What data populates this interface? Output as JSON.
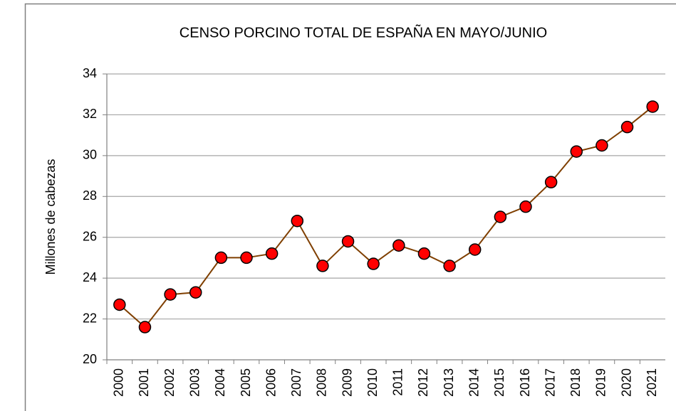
{
  "chart_data": {
    "type": "line",
    "title": "CENSO PORCINO TOTAL DE ESPAÑA EN MAYO/JUNIO",
    "y_label": "Millones de cabezas",
    "categories": [
      "2000",
      "2001",
      "2002",
      "2003",
      "2004",
      "2005",
      "2006",
      "2007",
      "2008",
      "2009",
      "2010",
      "2011",
      "2012",
      "2013",
      "2014",
      "2015",
      "2016",
      "2017",
      "2018",
      "2019",
      "2020",
      "2021"
    ],
    "series": [
      {
        "name": "Censo porcino",
        "color": "#7f3f00",
        "marker_color": "#ff0000",
        "values": [
          22.7,
          21.6,
          23.2,
          23.3,
          25.0,
          25.0,
          25.2,
          26.8,
          24.6,
          25.8,
          24.7,
          25.6,
          25.2,
          24.6,
          25.4,
          27.0,
          27.5,
          28.7,
          30.2,
          30.5,
          31.4,
          32.4
        ]
      }
    ],
    "ylim": [
      20,
      34
    ],
    "yticks": [
      20,
      22,
      24,
      26,
      28,
      30,
      32,
      34
    ],
    "grid": true
  }
}
